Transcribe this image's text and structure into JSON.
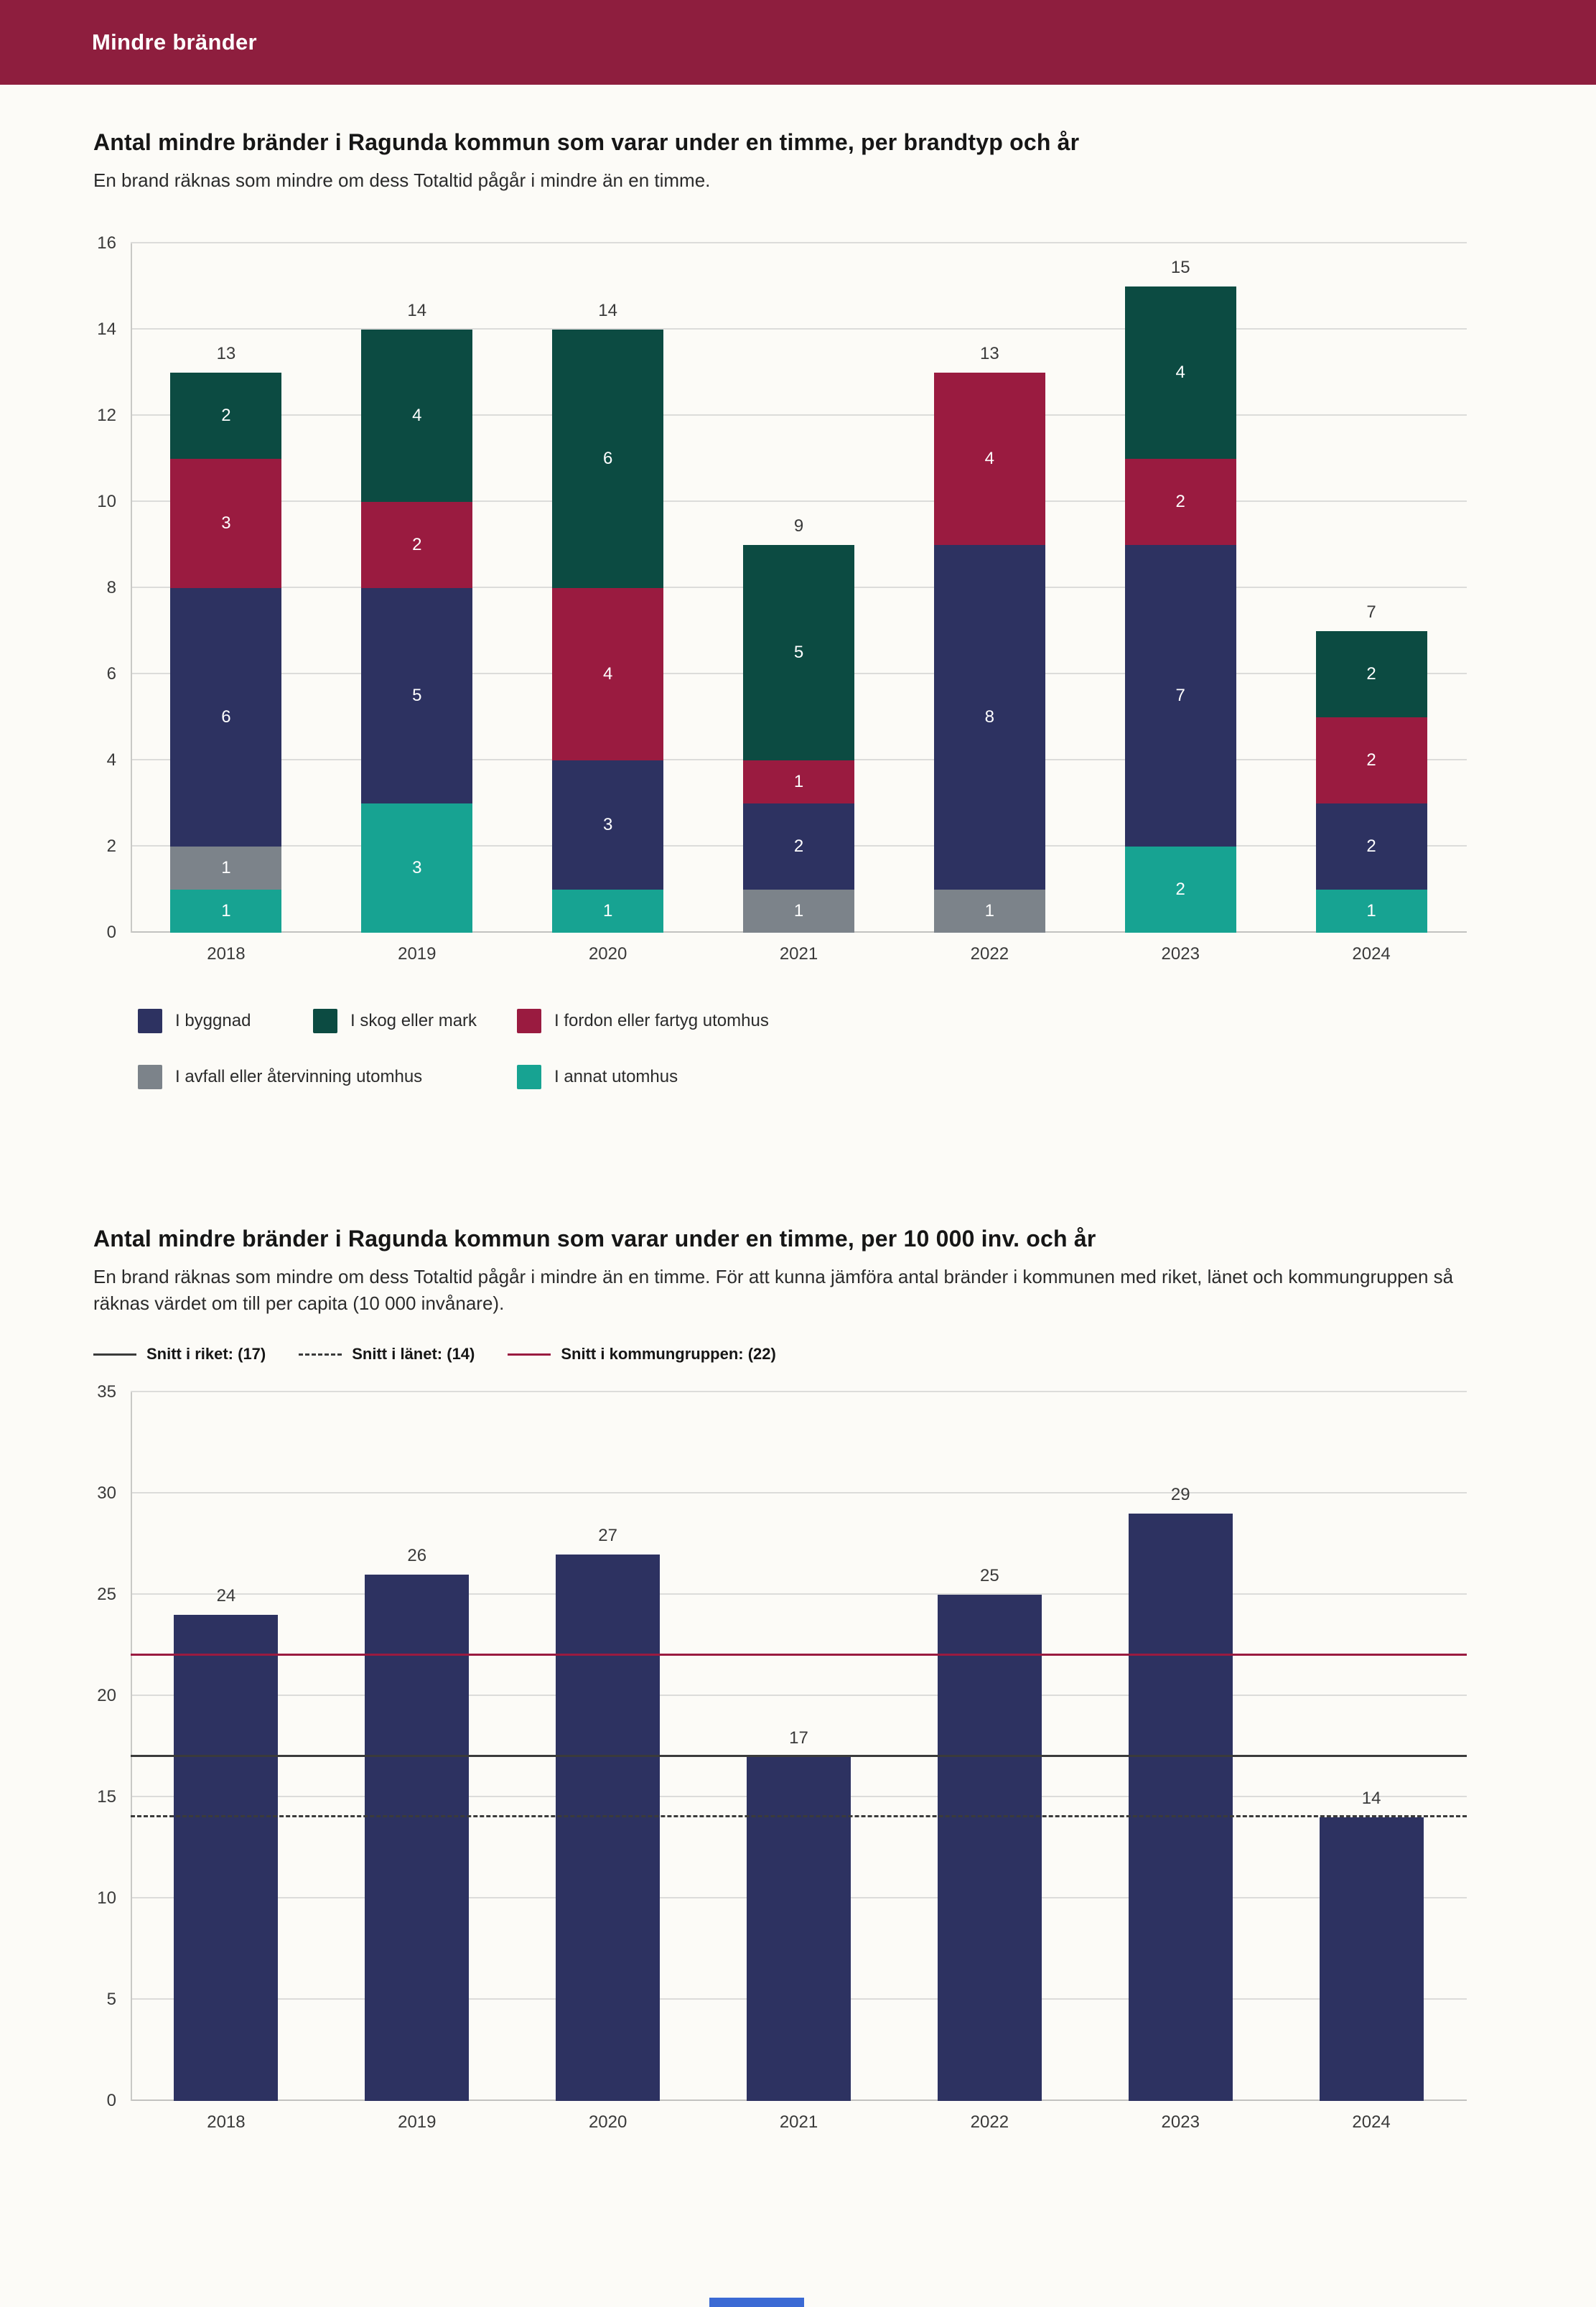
{
  "header": {
    "title": "Mindre bränder"
  },
  "theme": {
    "header_bg": "#8e1e3e",
    "page_bg": "#fcfbf7",
    "accent_blue": "#3b6ad4"
  },
  "section1": {
    "title": "Antal mindre bränder i Ragunda kommun som varar under en timme, per brandtyp och år",
    "subtitle": "En brand räknas som mindre om dess Totaltid pågår i mindre än en timme."
  },
  "section2": {
    "title": "Antal mindre bränder i Ragunda kommun som varar under en timme, per 10 000 inv. och år",
    "subtitle": "En brand räknas som mindre om dess Totaltid pågår i mindre än en timme. För att kunna jämföra antal bränder i kommunen med riket, länet och kommungruppen så räknas värdet om till per capita (10 000 invånare)."
  },
  "chart_data": [
    {
      "type": "bar",
      "stacked": true,
      "title": "Antal mindre bränder i Ragunda kommun som varar under en timme, per brandtyp och år",
      "categories": [
        "2018",
        "2019",
        "2020",
        "2021",
        "2022",
        "2023",
        "2024"
      ],
      "series": [
        {
          "name": "I annat utomhus",
          "color": "#17a392",
          "values": [
            1,
            3,
            1,
            0,
            0,
            2,
            1
          ]
        },
        {
          "name": "I avfall eller återvinning utomhus",
          "color": "#7c838a",
          "values": [
            1,
            0,
            0,
            1,
            1,
            0,
            0
          ]
        },
        {
          "name": "I byggnad",
          "color": "#2d3261",
          "values": [
            6,
            5,
            3,
            2,
            8,
            7,
            2
          ]
        },
        {
          "name": "I fordon eller fartyg utomhus",
          "color": "#9a1b40",
          "values": [
            3,
            2,
            4,
            1,
            4,
            2,
            2
          ]
        },
        {
          "name": "I skog eller mark",
          "color": "#0c4b42",
          "values": [
            2,
            4,
            6,
            5,
            0,
            4,
            2
          ]
        }
      ],
      "totals": [
        13,
        14,
        14,
        9,
        13,
        15,
        7
      ],
      "xlabel": "",
      "ylabel": "",
      "ylim": [
        0,
        16
      ],
      "yticks": [
        0,
        2,
        4,
        6,
        8,
        10,
        12,
        14,
        16
      ],
      "ytick_step": 2,
      "grid": true,
      "legend_position": "bottom",
      "legend_order": [
        "I byggnad",
        "I skog eller mark",
        "I fordon eller fartyg utomhus",
        "I avfall eller återvinning utomhus",
        "I annat utomhus"
      ]
    },
    {
      "type": "bar",
      "stacked": false,
      "title": "Antal mindre bränder i Ragunda kommun som varar under en timme, per 10 000 inv. och år",
      "categories": [
        "2018",
        "2019",
        "2020",
        "2021",
        "2022",
        "2023",
        "2024"
      ],
      "values": [
        24,
        26,
        27,
        17,
        25,
        29,
        14
      ],
      "bar_color": "#2d3261",
      "xlabel": "",
      "ylabel": "",
      "ylim": [
        0,
        35
      ],
      "yticks": [
        0,
        5,
        10,
        15,
        20,
        25,
        30,
        35
      ],
      "ytick_step": 5,
      "grid": true,
      "legend_position": "top",
      "reference_lines": [
        {
          "label": "Snitt i riket: (17)",
          "value": 17,
          "style": "solid",
          "color": "#3b3b3b"
        },
        {
          "label": "Snitt i länet: (14)",
          "value": 14,
          "style": "dashed",
          "color": "#3b3b3b"
        },
        {
          "label": "Snitt i kommungruppen: (22)",
          "value": 22,
          "style": "solid",
          "color": "#9a1b40"
        }
      ]
    }
  ]
}
